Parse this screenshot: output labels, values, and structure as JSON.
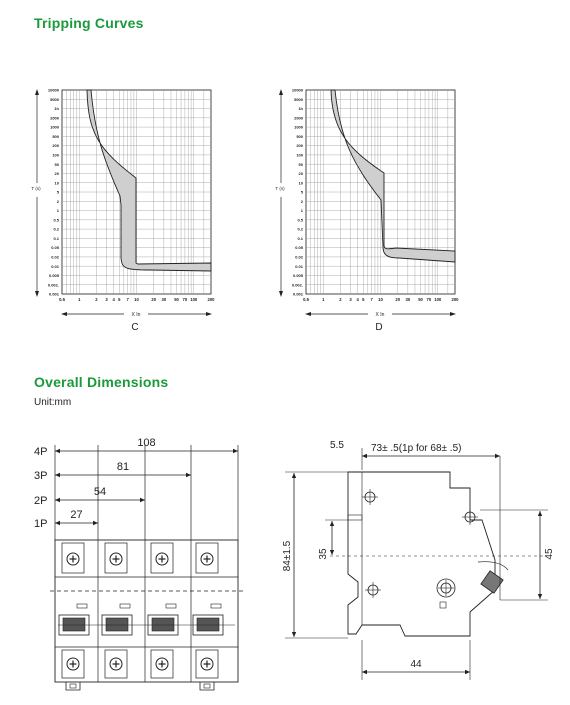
{
  "sections": {
    "tripping_title": "Tripping Curves",
    "dimensions_title": "Overall Dimensions",
    "unit": "Unit:mm"
  },
  "curves": {
    "y_axis_label": "T (s)",
    "x_axis_label": "X In",
    "y_ticks": [
      "10000",
      "5000",
      "1h",
      "2000",
      "1000",
      "500",
      "200",
      "100",
      "50",
      "20",
      "10",
      "5",
      "2",
      "1",
      "0.5",
      "0.2",
      "0.1",
      "0.05",
      "0.02",
      "0.01",
      "0.005",
      "0.002.",
      "0.001"
    ],
    "x_ticks": [
      "0.5",
      "1",
      "2",
      "3",
      "4",
      "5",
      "7",
      "10",
      "20",
      "30",
      "50",
      "70",
      "100",
      "200"
    ],
    "left_label": "C",
    "right_label": "D"
  },
  "front_view": {
    "pole_labels": [
      "4P",
      "3P",
      "2P",
      "1P"
    ],
    "widths": [
      "108",
      "81",
      "54",
      "27"
    ]
  },
  "side_view": {
    "dim_top_offset": "5.5",
    "dim_top_depth": "73±  .5(1p for 68±  .5)",
    "dim_height": "84±1.5",
    "dim_35": "35",
    "dim_45": "45",
    "dim_44": "44"
  },
  "colors": {
    "accent": "#1a9a3c",
    "band_fill": "#cfcfcf"
  }
}
